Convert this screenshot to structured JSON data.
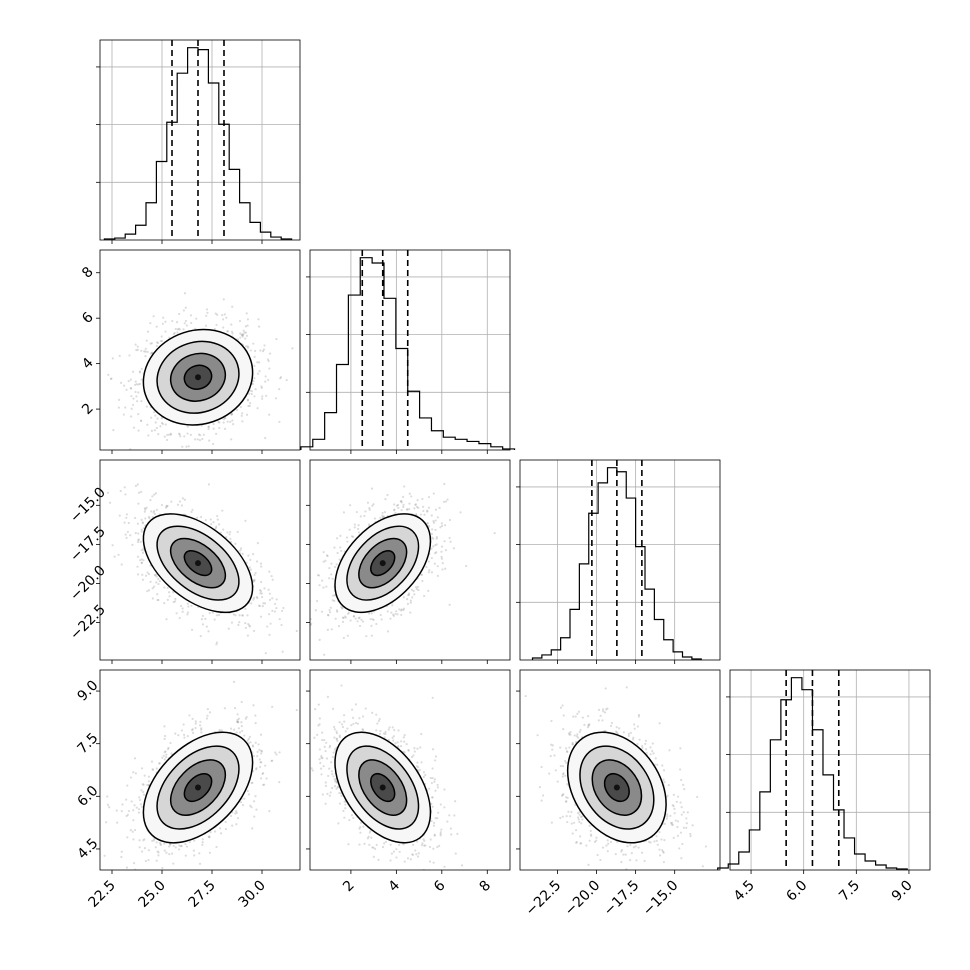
{
  "chart_data": {
    "type": "scatter",
    "title": "",
    "grid": true,
    "parameters": [
      {
        "index": 0,
        "mean": 26.8,
        "sigma": 1.3,
        "range": [
          21.9,
          31.9
        ],
        "ticks": [
          22.5,
          25.0,
          27.5,
          30.0
        ],
        "tick_labels": [
          "22.5",
          "25.0",
          "27.5",
          "30.0"
        ],
        "quantiles": [
          25.5,
          26.8,
          28.1
        ],
        "hist_counts": [
          1,
          2,
          6,
          15,
          38,
          80,
          120,
          170,
          196,
          194,
          160,
          118,
          72,
          38,
          18,
          8,
          3,
          1
        ]
      },
      {
        "index": 1,
        "mean": 3.4,
        "sigma": 1.0,
        "range": [
          0.2,
          9.0
        ],
        "ticks": [
          2,
          4,
          6,
          8
        ],
        "tick_labels": [
          "2",
          "4",
          "6",
          "8"
        ],
        "quantiles": [
          2.5,
          3.4,
          4.5
        ],
        "hist_counts": [
          3,
          10,
          35,
          80,
          145,
          180,
          175,
          142,
          95,
          55,
          30,
          18,
          12,
          10,
          8,
          6,
          3,
          1
        ]
      },
      {
        "index": 2,
        "mean": -18.7,
        "sigma": 1.5,
        "range": [
          -24.9,
          -12.1
        ],
        "ticks": [
          -22.5,
          -20.0,
          -17.5,
          -15.0
        ],
        "tick_labels": [
          "−22.5",
          "−20.0",
          "−17.5",
          "−15.0"
        ],
        "quantiles": [
          -20.3,
          -18.7,
          -17.1
        ],
        "hist_counts": [
          2,
          5,
          10,
          22,
          50,
          95,
          145,
          175,
          190,
          186,
          160,
          112,
          70,
          40,
          20,
          8,
          3,
          1
        ]
      },
      {
        "index": 3,
        "mean": 6.25,
        "sigma": 0.75,
        "range": [
          3.9,
          9.6
        ],
        "ticks": [
          4.5,
          6.0,
          7.5,
          9.0
        ],
        "tick_labels": [
          "4.5",
          "6.0",
          "7.5",
          "9.0"
        ],
        "quantiles": [
          5.5,
          6.25,
          7.0
        ],
        "hist_counts": [
          2,
          6,
          18,
          40,
          78,
          130,
          170,
          192,
          180,
          140,
          95,
          60,
          32,
          16,
          9,
          5,
          2,
          1
        ]
      }
    ],
    "panels_2d": [
      {
        "x": 0,
        "y": 1,
        "correlation": 0.1
      },
      {
        "x": 0,
        "y": 2,
        "correlation": -0.5
      },
      {
        "x": 1,
        "y": 2,
        "correlation": 0.45
      },
      {
        "x": 0,
        "y": 3,
        "correlation": 0.45
      },
      {
        "x": 1,
        "y": 3,
        "correlation": -0.45
      },
      {
        "x": 2,
        "y": 3,
        "correlation": -0.3
      }
    ],
    "contour_levels_sigma": [
      0.5,
      1.0,
      1.5,
      2.0
    ],
    "quantile_style": "dashed",
    "histogram_style": "step"
  }
}
